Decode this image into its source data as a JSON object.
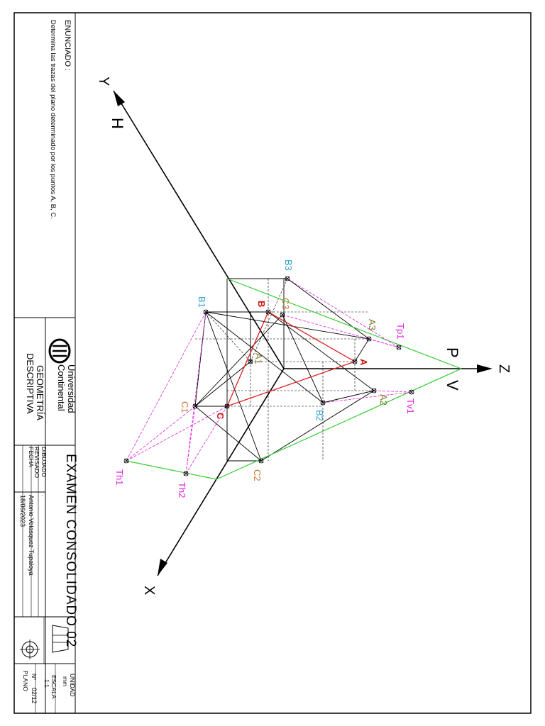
{
  "enunciado": {
    "title": "ENUNCIADO :",
    "text": "Determina las trazas del plano determinado por los puntos A, B, C."
  },
  "title_block": {
    "university_line1": "Universidad",
    "university_line2": "Continental",
    "course_line1": "GEOMETRÍA",
    "course_line2": "DESCRIPTIVA",
    "exam_title": "EXAMEN CONSOLIDADO 02",
    "dibujado_label": "DIBUJADO",
    "dibujado_value": ".",
    "revisado_label": "REVISADO",
    "revisado_value": "Antonio Velasquez Tupaloya",
    "fecha_label": "FECHA",
    "fecha_value": "18/06/2023",
    "unidad_label": "UNIDAD",
    "unidad_value": "mm",
    "escala_label": "ESCALA",
    "escala_value": "1:1",
    "plano_label": "N°",
    "plano_value": "02/12",
    "plano_word": "PLANO"
  },
  "axes": {
    "x": "X",
    "y": "Y",
    "z": "Z",
    "plane_h": "H",
    "plane_p": "P",
    "plane_v": "V"
  },
  "points": {
    "A": "A",
    "A1": "A1",
    "A2": "A2",
    "A3": "A3",
    "B": "B",
    "B1": "B1",
    "B2": "B2",
    "B3": "B3",
    "C": "C",
    "C1": "C1",
    "C2": "C2",
    "C3": "C3",
    "Tp1": "Tp1",
    "Tv1": "Tv1",
    "Th1": "Th1",
    "Th2": "Th2"
  },
  "colors": {
    "axis": "#000000",
    "plane_trace": "#33cc33",
    "triangle": "#e02020",
    "trace_construction": "#e020e0",
    "label_A": "#7a7a2a",
    "label_B": "#2a9fd0",
    "label_C": "#c87830",
    "label_T": "#e020e0",
    "label_red": "#d01010"
  }
}
